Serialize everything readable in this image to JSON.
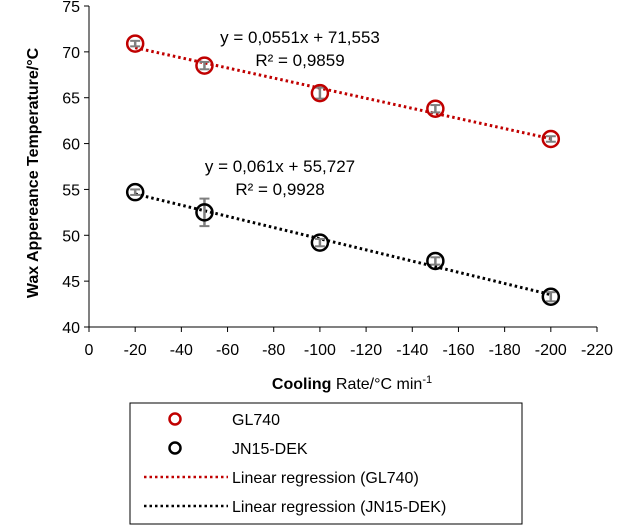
{
  "chart_data": {
    "type": "scatter",
    "xlabel_bold": "Cooling",
    "xlabel_rest": " Rate/°C min",
    "xlabel_sup": "-1",
    "ylabel": "Wax Appereance Temperature/°C",
    "xlim": [
      0,
      -220
    ],
    "ylim": [
      40,
      75
    ],
    "xticks": [
      "0",
      "-20",
      "-40",
      "-60",
      "-80",
      "-100",
      "-120",
      "-140",
      "-160",
      "-180",
      "-200",
      "-220"
    ],
    "xtick_values": [
      0,
      -20,
      -40,
      -60,
      -80,
      -100,
      -120,
      -140,
      -160,
      -180,
      -200,
      -220
    ],
    "yticks": [
      "40",
      "45",
      "50",
      "55",
      "60",
      "65",
      "70",
      "75"
    ],
    "ytick_values": [
      40,
      45,
      50,
      55,
      60,
      65,
      70,
      75
    ],
    "grid": false,
    "legend_position": "bottom",
    "series": [
      {
        "name": "GL740",
        "color": "#c00000",
        "x": [
          -20,
          -50,
          -100,
          -150,
          -200
        ],
        "y": [
          70.9,
          68.5,
          65.5,
          63.8,
          60.5
        ],
        "err": [
          0.3,
          0.4,
          0.6,
          0.4,
          0.3
        ]
      },
      {
        "name": "JN15-DEK",
        "color": "#000000",
        "x": [
          -20,
          -50,
          -100,
          -150,
          -200
        ],
        "y": [
          54.7,
          52.5,
          49.2,
          47.2,
          43.3
        ],
        "err": [
          0.3,
          1.5,
          0.4,
          0.4,
          0.5
        ]
      }
    ],
    "regressions": [
      {
        "name": "Linear regression (GL740)",
        "color": "#c00000",
        "slope": 0.0551,
        "intercept": 71.553,
        "x_range": [
          -20,
          -200
        ],
        "equation": "y = 0,0551x + 71,553",
        "r2": "R² = 0,9859"
      },
      {
        "name": "Linear regression (JN15-DEK)",
        "color": "#000000",
        "slope": 0.061,
        "intercept": 55.727,
        "x_range": [
          -20,
          -200
        ],
        "equation": "y = 0,061x + 55,727",
        "r2": "R² = 0,9928"
      }
    ]
  }
}
